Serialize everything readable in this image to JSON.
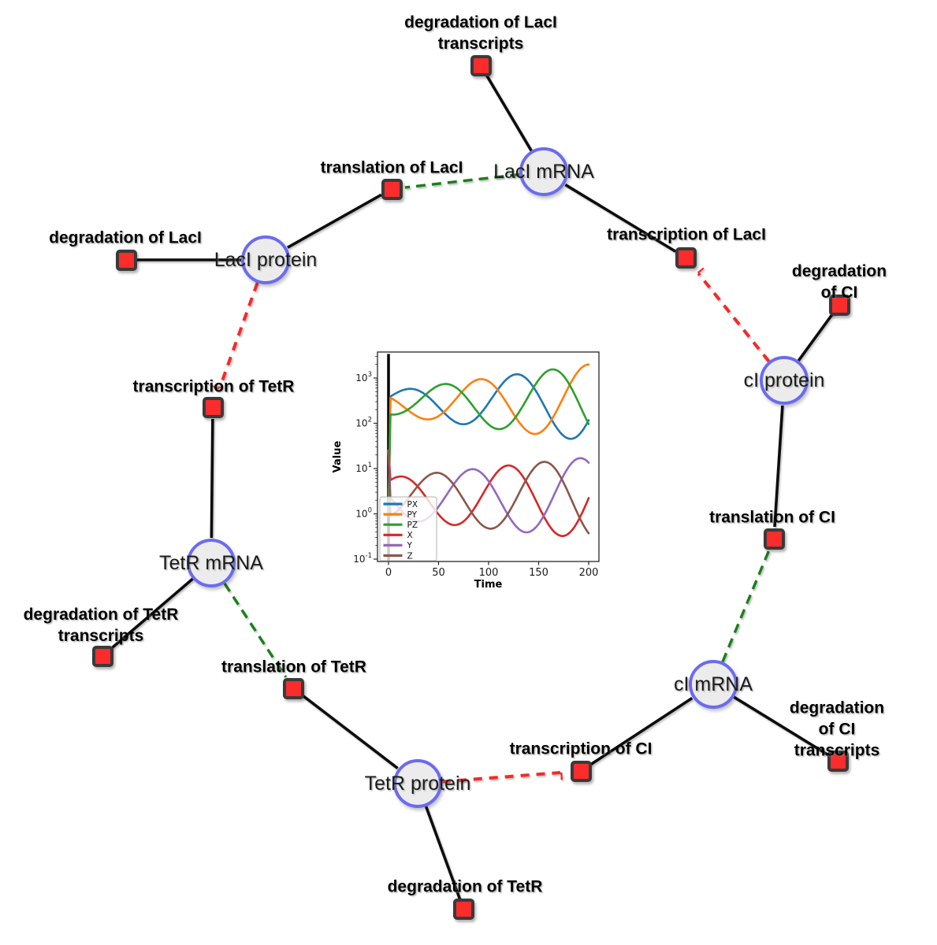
{
  "diagram": {
    "species": [
      {
        "id": "laci_mrna",
        "label": "LacI mRNA"
      },
      {
        "id": "laci_protein",
        "label": "LacI protein"
      },
      {
        "id": "tetr_mrna",
        "label": "TetR mRNA"
      },
      {
        "id": "tetr_protein",
        "label": "TetR protein"
      },
      {
        "id": "ci_mrna",
        "label": "cI mRNA"
      },
      {
        "id": "ci_protein",
        "label": "cI protein"
      }
    ],
    "processes": [
      {
        "id": "deg_laci_tx",
        "label": "degradation of LacI\ntranscripts"
      },
      {
        "id": "transl_laci",
        "label": "translation of LacI"
      },
      {
        "id": "deg_laci",
        "label": "degradation of LacI"
      },
      {
        "id": "txn_laci",
        "label": "transcription of LacI"
      },
      {
        "id": "deg_ci",
        "label": "degradation of CI"
      },
      {
        "id": "txn_tetr",
        "label": "transcription of TetR"
      },
      {
        "id": "transl_ci",
        "label": "translation of CI"
      },
      {
        "id": "deg_tetr_tx",
        "label": "degradation of TetR\ntranscripts"
      },
      {
        "id": "transl_tetr",
        "label": "translation of TetR"
      },
      {
        "id": "deg_ci_tx",
        "label": "degradation of CI\ntranscripts"
      },
      {
        "id": "txn_ci",
        "label": "transcription of CI"
      },
      {
        "id": "deg_tetr",
        "label": "degradation of TetR"
      }
    ],
    "edges": [
      {
        "from": "txn_laci",
        "to": "laci_mrna",
        "type": "production"
      },
      {
        "from": "laci_mrna",
        "to": "deg_laci_tx",
        "type": "consumption"
      },
      {
        "from": "laci_mrna",
        "to": "transl_laci",
        "type": "activation"
      },
      {
        "from": "transl_laci",
        "to": "laci_protein",
        "type": "production"
      },
      {
        "from": "laci_protein",
        "to": "deg_laci",
        "type": "consumption"
      },
      {
        "from": "laci_protein",
        "to": "txn_tetr",
        "type": "inhibition"
      },
      {
        "from": "txn_tetr",
        "to": "tetr_mrna",
        "type": "production"
      },
      {
        "from": "tetr_mrna",
        "to": "deg_tetr_tx",
        "type": "consumption"
      },
      {
        "from": "tetr_mrna",
        "to": "transl_tetr",
        "type": "activation"
      },
      {
        "from": "transl_tetr",
        "to": "tetr_protein",
        "type": "production"
      },
      {
        "from": "tetr_protein",
        "to": "deg_tetr",
        "type": "consumption"
      },
      {
        "from": "tetr_protein",
        "to": "txn_ci",
        "type": "inhibition"
      },
      {
        "from": "txn_ci",
        "to": "ci_mrna",
        "type": "production"
      },
      {
        "from": "ci_mrna",
        "to": "deg_ci_tx",
        "type": "consumption"
      },
      {
        "from": "ci_mrna",
        "to": "transl_ci",
        "type": "activation"
      },
      {
        "from": "transl_ci",
        "to": "ci_protein",
        "type": "production"
      },
      {
        "from": "ci_protein",
        "to": "deg_ci",
        "type": "consumption"
      },
      {
        "from": "ci_protein",
        "to": "txn_laci",
        "type": "inhibition"
      }
    ],
    "colors": {
      "species_fill": "#ececec",
      "species_border": "#6b6bf0",
      "process_fill": "#fb2c2c",
      "process_border": "#3a3a3a",
      "edge_black": "#111111",
      "activation_green": "#1e7d1e",
      "inhibition_red": "#f22b2b"
    }
  },
  "chart_data": {
    "type": "line",
    "title": "",
    "xlabel": "Time",
    "ylabel": "Value",
    "x_ticks": [
      0,
      50,
      100,
      150,
      200
    ],
    "x_range": [
      -11,
      210
    ],
    "y_scale": "log",
    "y_tick_exponents": [
      -1,
      0,
      1,
      2,
      3
    ],
    "y_range_exponents": [
      -1.05,
      3.6
    ],
    "grid": false,
    "legend_position": "lower-left",
    "init_line_x": 0,
    "series": [
      {
        "name": "PX",
        "color": "#1f77b4",
        "kind": "log10_oscillation",
        "log_mean": 2.45,
        "log_amp_start": 0.25,
        "log_amp_end": 0.85,
        "period": 108,
        "peak_t": 127,
        "start_value": 1.0
      },
      {
        "name": "PY",
        "color": "#ff7f0e",
        "kind": "log10_oscillation",
        "log_mean": 2.45,
        "log_amp_start": 0.25,
        "log_amp_end": 0.85,
        "period": 108,
        "peak_t": 91,
        "start_value": 1.0
      },
      {
        "name": "PZ",
        "color": "#2ca02c",
        "kind": "log10_oscillation",
        "log_mean": 2.45,
        "log_amp_start": 0.25,
        "log_amp_end": 0.85,
        "period": 108,
        "peak_t": 55,
        "start_value": 1.0
      },
      {
        "name": "X",
        "color": "#d62728",
        "kind": "log10_oscillation",
        "log_mean": 0.35,
        "log_amp_start": 0.45,
        "log_amp_end": 0.9,
        "period": 108,
        "peak_t": 119,
        "start_value": 25
      },
      {
        "name": "Y",
        "color": "#9467bd",
        "kind": "log10_oscillation",
        "log_mean": 0.35,
        "log_amp_start": 0.45,
        "log_amp_end": 0.9,
        "period": 108,
        "peak_t": 83,
        "start_value": 25
      },
      {
        "name": "Z",
        "color": "#8c564b",
        "kind": "log10_oscillation",
        "log_mean": 0.35,
        "log_amp_start": 0.45,
        "log_amp_end": 0.9,
        "period": 108,
        "peak_t": 47,
        "start_value": 25
      }
    ]
  }
}
